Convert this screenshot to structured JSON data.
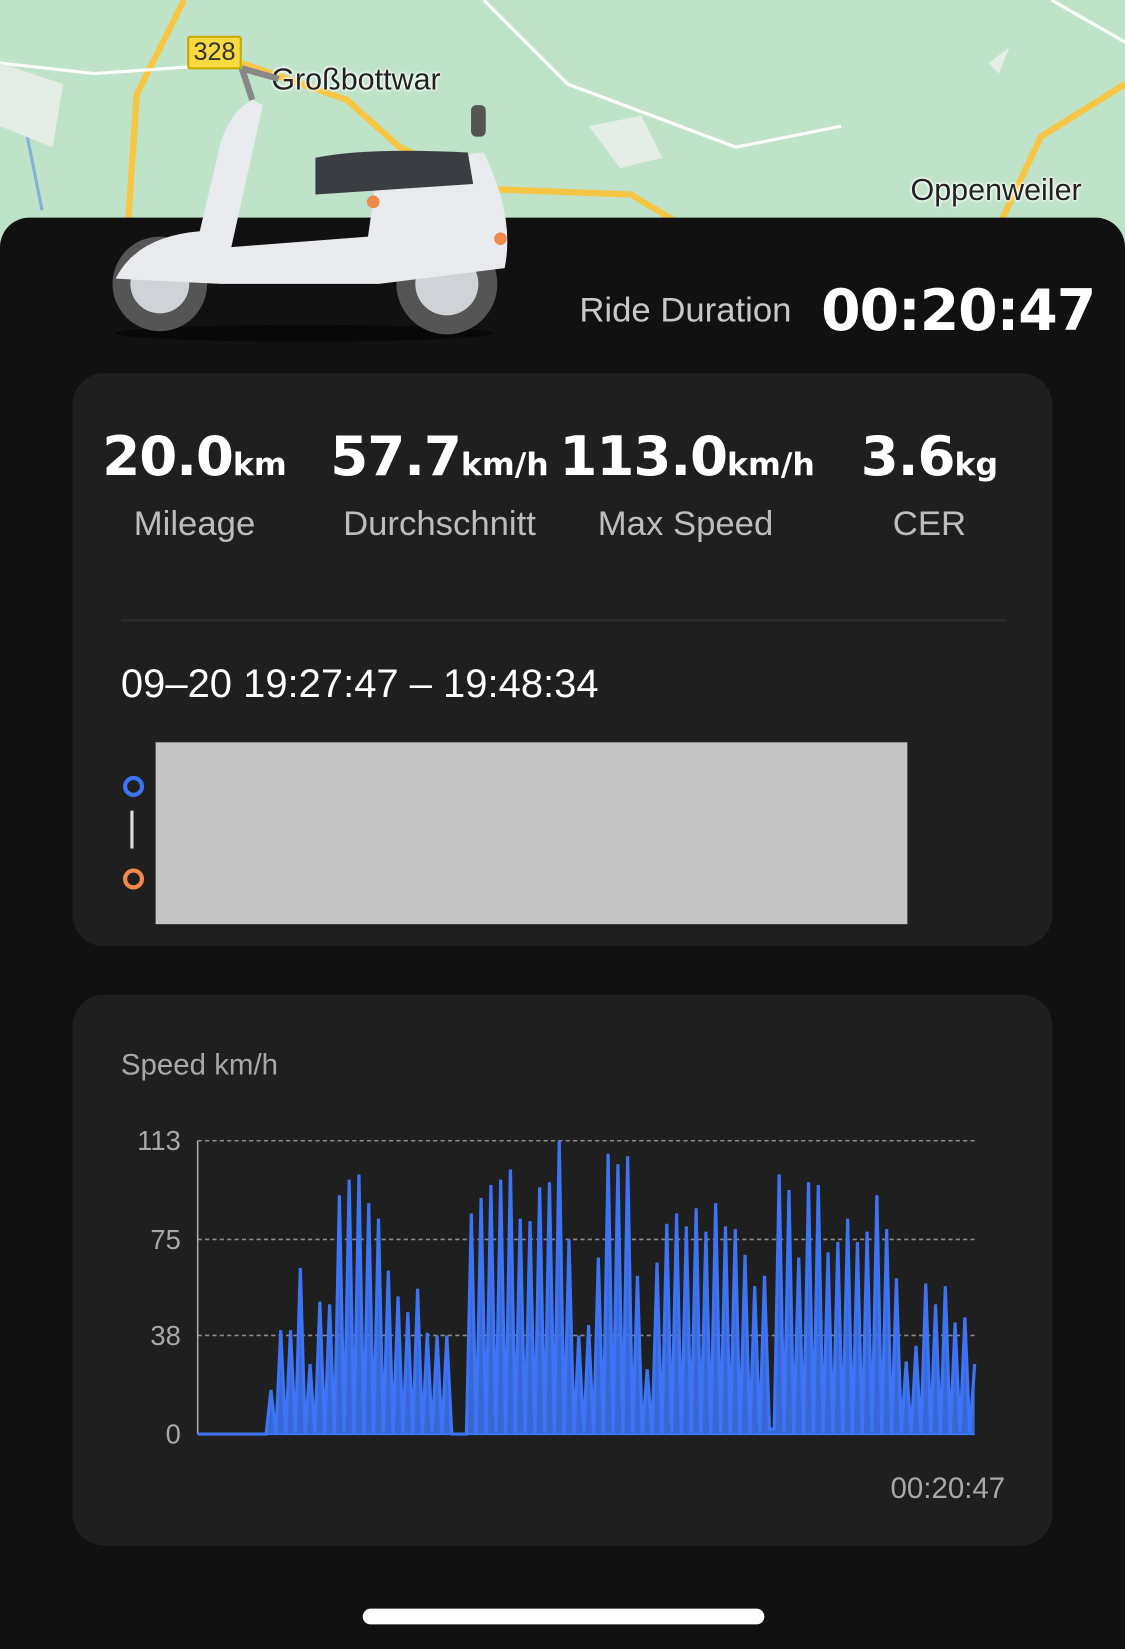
{
  "map": {
    "labels": [
      "Großbottwar",
      "Oppenweiler"
    ],
    "route_number": "328"
  },
  "ride": {
    "duration_label": "Ride Duration",
    "duration_value": "00:20:47"
  },
  "stats": [
    {
      "value": "20.0",
      "unit": "km",
      "label": "Mileage"
    },
    {
      "value": "57.7",
      "unit": "km/h",
      "label": "Durchschnitt"
    },
    {
      "value": "113.0",
      "unit": "km/h",
      "label": "Max Speed"
    },
    {
      "value": "3.6",
      "unit": "kg",
      "label": "CER"
    }
  ],
  "trip": {
    "time_range": "09–20 19:27:47 – 19:48:34",
    "start_color": "#3d74f5",
    "end_color": "#f08a4b"
  },
  "chart_data": {
    "type": "line",
    "title": "Speed km/h",
    "x_end_label": "00:20:47",
    "ylim": [
      0,
      113
    ],
    "yticks": [
      0,
      38,
      75,
      113
    ],
    "grid": true,
    "color": "#3d74f5",
    "values": [
      0,
      0,
      0,
      0,
      0,
      0,
      0,
      0,
      0,
      0,
      0,
      0,
      0,
      0,
      0,
      17,
      0,
      40,
      0,
      40,
      0,
      64,
      0,
      27,
      0,
      51,
      0,
      50,
      0,
      92,
      0,
      98,
      0,
      100,
      0,
      89,
      0,
      83,
      0,
      63,
      0,
      53,
      0,
      47,
      0,
      56,
      0,
      39,
      0,
      38,
      0,
      38,
      0,
      0,
      0,
      0,
      85,
      0,
      91,
      0,
      96,
      0,
      98,
      0,
      102,
      0,
      83,
      0,
      82,
      0,
      95,
      0,
      97,
      0,
      113,
      0,
      75,
      0,
      38,
      0,
      42,
      0,
      68,
      0,
      108,
      0,
      104,
      0,
      107,
      0,
      61,
      0,
      25,
      0,
      66,
      0,
      81,
      0,
      85,
      0,
      80,
      0,
      87,
      0,
      78,
      0,
      89,
      0,
      80,
      0,
      79,
      0,
      69,
      0,
      57,
      0,
      61,
      2,
      2,
      100,
      0,
      94,
      0,
      68,
      0,
      97,
      0,
      96,
      0,
      70,
      0,
      74,
      0,
      83,
      0,
      74,
      0,
      78,
      0,
      92,
      0,
      79,
      0,
      60,
      0,
      28,
      0,
      34,
      0,
      58,
      0,
      50,
      0,
      57,
      0,
      43,
      0,
      45,
      0,
      27
    ]
  }
}
